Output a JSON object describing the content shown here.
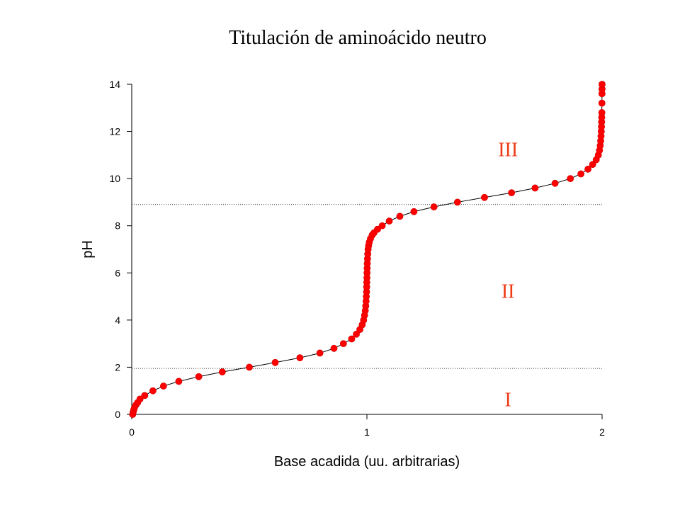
{
  "chart_data": {
    "type": "scatter",
    "title": "Titulación de aminoácido neutro",
    "xlabel": "Base acadida (uu. arbitrarias)",
    "ylabel": "pH",
    "xlim": [
      0,
      2
    ],
    "ylim": [
      0,
      14
    ],
    "x_ticks": [
      0,
      1,
      2
    ],
    "y_ticks": [
      0,
      2,
      4,
      6,
      8,
      10,
      12,
      14
    ],
    "grid": false,
    "legend": "none",
    "reference_lines": [
      {
        "axis": "y",
        "value": 1.95,
        "style": "dotted"
      },
      {
        "axis": "y",
        "value": 8.9,
        "style": "dotted"
      }
    ],
    "region_labels": [
      {
        "text": "I",
        "x": 1.6,
        "y": 0.65
      },
      {
        "text": "II",
        "x": 1.6,
        "y": 5.25
      },
      {
        "text": "III",
        "x": 1.6,
        "y": 11.25
      }
    ],
    "series": [
      {
        "color": "#ff0000",
        "line_color": "#000000",
        "x": [
          0.004,
          0.006,
          0.009,
          0.012,
          0.018,
          0.025,
          0.035,
          0.055,
          0.09,
          0.135,
          0.2,
          0.285,
          0.385,
          0.5,
          0.61,
          0.715,
          0.8,
          0.86,
          0.9,
          0.935,
          0.955,
          0.97,
          0.98,
          0.986,
          0.99,
          0.993,
          0.995,
          0.9965,
          0.9975,
          0.9985,
          0.999,
          0.9995,
          1.0,
          1.0005,
          1.001,
          1.0015,
          1.0025,
          1.0035,
          1.005,
          1.007,
          1.01,
          1.015,
          1.022,
          1.03,
          1.045,
          1.065,
          1.095,
          1.14,
          1.2,
          1.285,
          1.385,
          1.5,
          1.615,
          1.715,
          1.8,
          1.865,
          1.91,
          1.94,
          1.96,
          1.975,
          1.984,
          1.989,
          1.992,
          1.994,
          1.9955,
          1.9965,
          1.9973,
          1.998,
          1.9985,
          1.999,
          1.9993,
          1.9996,
          1.9998,
          2.0
        ],
        "y": [
          0.0,
          0.1,
          0.2,
          0.3,
          0.4,
          0.5,
          0.65,
          0.8,
          1.0,
          1.2,
          1.4,
          1.6,
          1.8,
          2.0,
          2.2,
          2.4,
          2.6,
          2.8,
          3.0,
          3.2,
          3.4,
          3.6,
          3.8,
          4.0,
          4.2,
          4.4,
          4.6,
          4.8,
          5.0,
          5.2,
          5.4,
          5.6,
          5.8,
          6.0,
          6.2,
          6.4,
          6.6,
          6.8,
          7.0,
          7.15,
          7.3,
          7.45,
          7.6,
          7.7,
          7.85,
          8.0,
          8.2,
          8.4,
          8.6,
          8.8,
          9.0,
          9.2,
          9.4,
          9.6,
          9.8,
          10.0,
          10.2,
          10.4,
          10.6,
          10.8,
          11.0,
          11.2,
          11.4,
          11.6,
          11.8,
          12.0,
          12.2,
          12.4,
          12.6,
          12.8,
          13.2,
          13.6,
          13.8,
          14.0
        ]
      }
    ]
  }
}
